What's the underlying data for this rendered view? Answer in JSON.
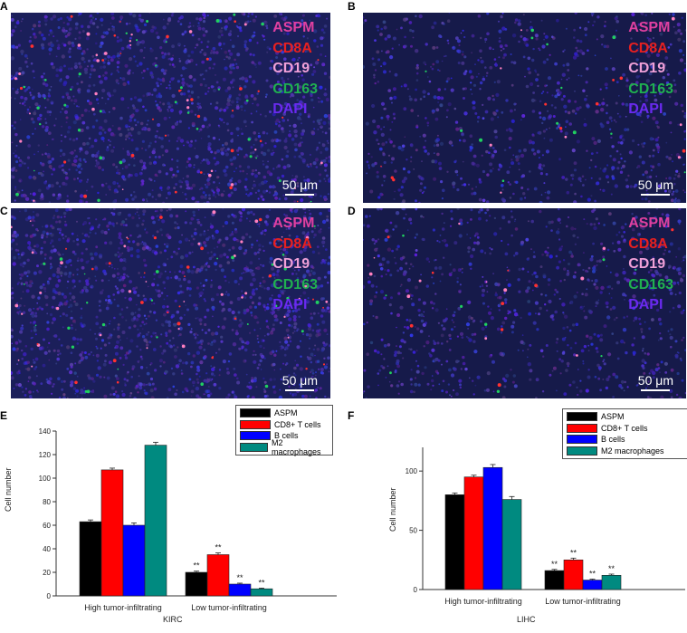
{
  "panels": {
    "letters": [
      "A",
      "B",
      "C",
      "D",
      "E",
      "F"
    ],
    "legend": [
      {
        "label": "ASPM",
        "color": "#e040a0"
      },
      {
        "label": "CD8A",
        "color": "#e82020"
      },
      {
        "label": "CD19",
        "color": "#f0a0d8"
      },
      {
        "label": "CD163",
        "color": "#20b050"
      },
      {
        "label": "DAPI",
        "color": "#6a2af0"
      }
    ],
    "scale_bar": "50 μm"
  },
  "chart_data": [
    {
      "type": "bar",
      "panel": "E",
      "title": "",
      "xlabel": "KIRC",
      "ylabel": "Cell number",
      "categories": [
        "High tumor-infiltrating",
        "Low tumor-infiltrating"
      ],
      "ylim": [
        0,
        140
      ],
      "yticks": [
        0,
        20,
        40,
        60,
        80,
        100,
        120,
        140
      ],
      "series": [
        {
          "name": "ASPM",
          "color": "#000000",
          "values": [
            63,
            20
          ],
          "errors": [
            1.5,
            1
          ],
          "sig": [
            "",
            "**"
          ]
        },
        {
          "name": "CD8+ T cells",
          "color": "#ff0000",
          "values": [
            107,
            35
          ],
          "errors": [
            1.5,
            1.5
          ],
          "sig": [
            "",
            "**"
          ]
        },
        {
          "name": "B cells",
          "color": "#0000ff",
          "values": [
            60,
            10
          ],
          "errors": [
            2,
            0.8
          ],
          "sig": [
            "",
            "**"
          ]
        },
        {
          "name": "M2 macrophages",
          "color": "#008a80",
          "values": [
            128,
            6
          ],
          "errors": [
            2.5,
            0.6
          ],
          "sig": [
            "",
            "**"
          ]
        }
      ]
    },
    {
      "type": "bar",
      "panel": "F",
      "title": "",
      "xlabel": "LIHC",
      "ylabel": "Cell number",
      "categories": [
        "High tumor-infiltrating",
        "Low tumor-infiltrating"
      ],
      "ylim": [
        0,
        120
      ],
      "yticks": [
        0,
        50,
        100
      ],
      "series": [
        {
          "name": "ASPM",
          "color": "#000000",
          "values": [
            80,
            16
          ],
          "errors": [
            1.5,
            1
          ],
          "sig": [
            "",
            "**"
          ]
        },
        {
          "name": "CD8+ T cells",
          "color": "#ff0000",
          "values": [
            95,
            25
          ],
          "errors": [
            1.5,
            1.5
          ],
          "sig": [
            "",
            "**"
          ]
        },
        {
          "name": "B cells",
          "color": "#0000ff",
          "values": [
            103,
            8
          ],
          "errors": [
            2.5,
            0.8
          ],
          "sig": [
            "",
            "**"
          ]
        },
        {
          "name": "M2 macrophages",
          "color": "#008a80",
          "values": [
            76,
            12
          ],
          "errors": [
            2.5,
            1
          ],
          "sig": [
            "",
            "**"
          ]
        }
      ]
    }
  ]
}
